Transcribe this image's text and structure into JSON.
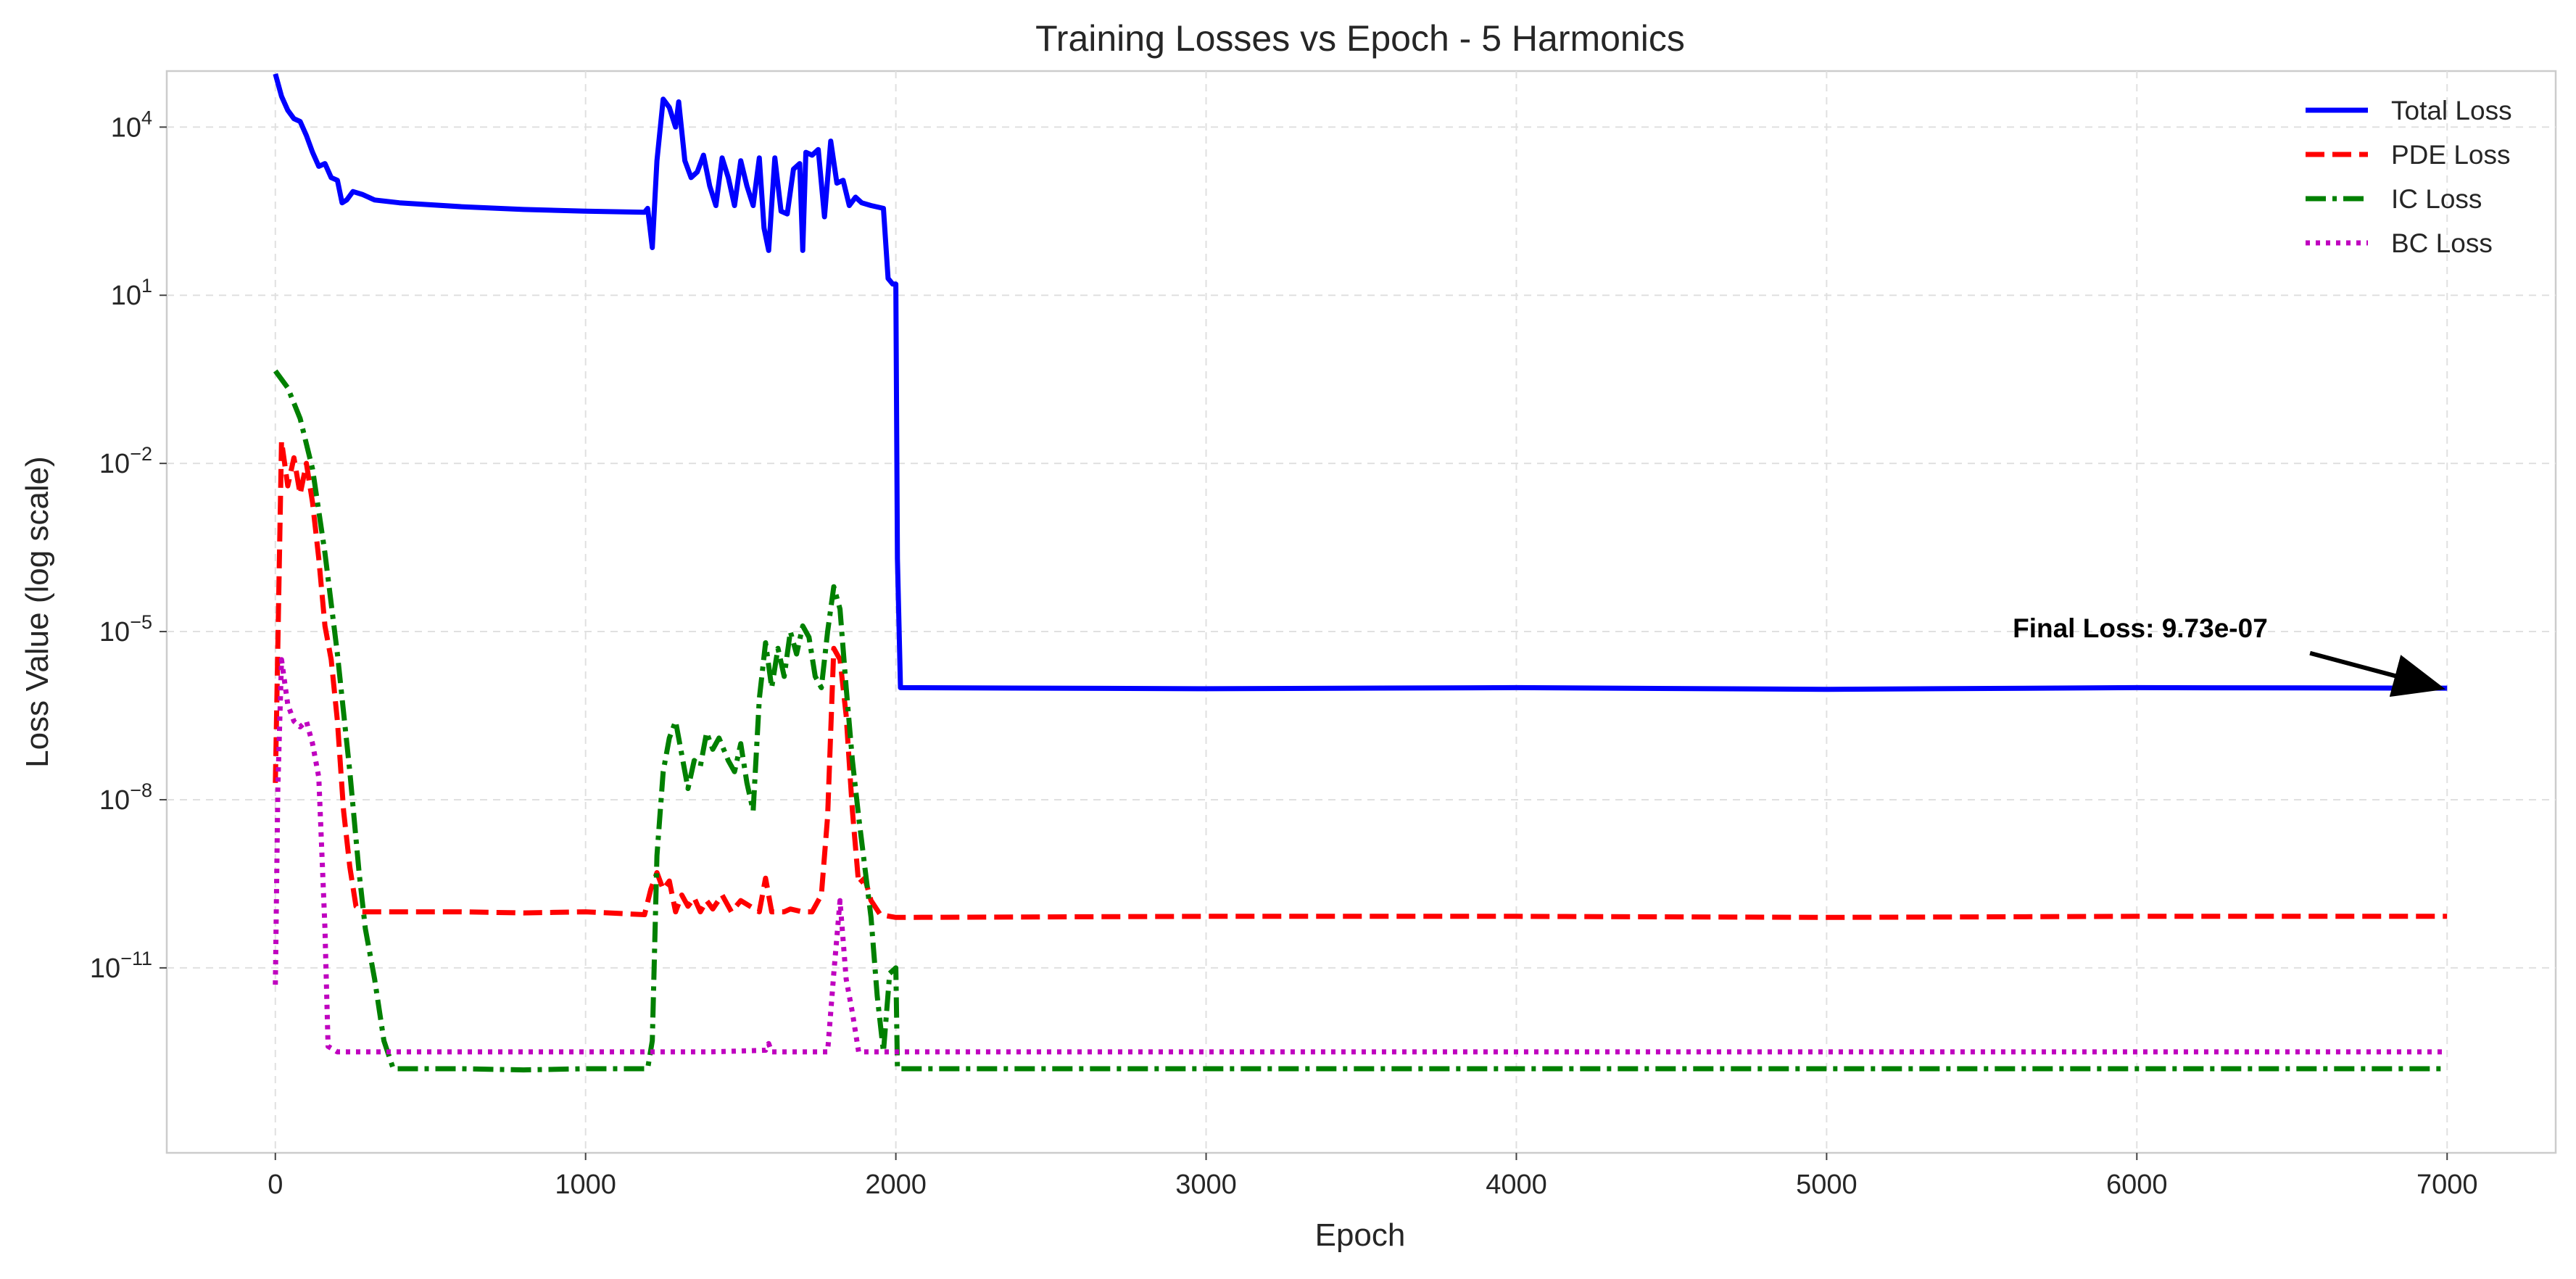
{
  "chart_data": {
    "type": "line",
    "title": "Training Losses vs Epoch - 5 Harmonics",
    "xlabel": "Epoch",
    "ylabel": "Loss Value (log scale)",
    "xlim": [
      -350,
      7350
    ],
    "ylim_log10": [
      -14.3,
      5.0
    ],
    "yscale": "log",
    "x_ticks": [
      0,
      1000,
      2000,
      3000,
      4000,
      5000,
      6000,
      7000
    ],
    "x_tick_labels": [
      "0",
      "1000",
      "2000",
      "3000",
      "4000",
      "5000",
      "6000",
      "7000"
    ],
    "y_ticks_log10": [
      4,
      1,
      -2,
      -5,
      -8,
      -11
    ],
    "y_tick_labels": [
      {
        "base": "10",
        "exp": "4"
      },
      {
        "base": "10",
        "exp": "1"
      },
      {
        "base": "10",
        "exp": "−2"
      },
      {
        "base": "10",
        "exp": "−5"
      },
      {
        "base": "10",
        "exp": "−8"
      },
      {
        "base": "10",
        "exp": "−11"
      }
    ],
    "grid": true,
    "legend_position": "top-right",
    "series": [
      {
        "name": "Total Loss",
        "color": "#0000ff",
        "dash": "solid",
        "points_log10": [
          [
            0,
            4.95
          ],
          [
            20,
            4.55
          ],
          [
            40,
            4.3
          ],
          [
            60,
            4.15
          ],
          [
            80,
            4.1
          ],
          [
            100,
            3.85
          ],
          [
            120,
            3.55
          ],
          [
            140,
            3.3
          ],
          [
            160,
            3.35
          ],
          [
            180,
            3.1
          ],
          [
            200,
            3.05
          ],
          [
            215,
            2.65
          ],
          [
            230,
            2.7
          ],
          [
            250,
            2.85
          ],
          [
            280,
            2.8
          ],
          [
            320,
            2.7
          ],
          [
            400,
            2.65
          ],
          [
            600,
            2.58
          ],
          [
            800,
            2.53
          ],
          [
            1000,
            2.5
          ],
          [
            1190,
            2.48
          ],
          [
            1200,
            2.55
          ],
          [
            1215,
            1.85
          ],
          [
            1230,
            3.4
          ],
          [
            1250,
            4.5
          ],
          [
            1270,
            4.35
          ],
          [
            1290,
            4.0
          ],
          [
            1300,
            4.45
          ],
          [
            1320,
            3.4
          ],
          [
            1340,
            3.1
          ],
          [
            1360,
            3.2
          ],
          [
            1380,
            3.5
          ],
          [
            1400,
            2.95
          ],
          [
            1420,
            2.6
          ],
          [
            1440,
            3.45
          ],
          [
            1460,
            3.1
          ],
          [
            1480,
            2.6
          ],
          [
            1500,
            3.4
          ],
          [
            1520,
            2.95
          ],
          [
            1540,
            2.6
          ],
          [
            1560,
            3.45
          ],
          [
            1575,
            2.2
          ],
          [
            1590,
            1.8
          ],
          [
            1610,
            3.45
          ],
          [
            1630,
            2.5
          ],
          [
            1650,
            2.45
          ],
          [
            1670,
            3.25
          ],
          [
            1690,
            3.35
          ],
          [
            1700,
            1.8
          ],
          [
            1710,
            3.55
          ],
          [
            1730,
            3.5
          ],
          [
            1750,
            3.6
          ],
          [
            1770,
            2.4
          ],
          [
            1790,
            3.75
          ],
          [
            1810,
            3.0
          ],
          [
            1830,
            3.05
          ],
          [
            1850,
            2.6
          ],
          [
            1870,
            2.75
          ],
          [
            1890,
            2.65
          ],
          [
            1920,
            2.6
          ],
          [
            1960,
            2.55
          ],
          [
            1975,
            1.3
          ],
          [
            1990,
            1.2
          ],
          [
            2000,
            1.2
          ],
          [
            2005,
            -3.7
          ],
          [
            2015,
            -6.0
          ],
          [
            3000,
            -6.02
          ],
          [
            4000,
            -6.0
          ],
          [
            5000,
            -6.03
          ],
          [
            6000,
            -6.0
          ],
          [
            7000,
            -6.01
          ]
        ]
      },
      {
        "name": "PDE Loss",
        "color": "#ff0000",
        "dash": "dashed",
        "points_log10": [
          [
            0,
            -7.7
          ],
          [
            20,
            -1.6
          ],
          [
            40,
            -2.4
          ],
          [
            60,
            -1.9
          ],
          [
            80,
            -2.55
          ],
          [
            100,
            -2.0
          ],
          [
            120,
            -2.7
          ],
          [
            140,
            -3.7
          ],
          [
            160,
            -4.9
          ],
          [
            180,
            -5.5
          ],
          [
            200,
            -6.6
          ],
          [
            220,
            -8.2
          ],
          [
            240,
            -9.2
          ],
          [
            260,
            -9.9
          ],
          [
            280,
            -10.0
          ],
          [
            400,
            -10.0
          ],
          [
            600,
            -10.0
          ],
          [
            800,
            -10.02
          ],
          [
            1000,
            -10.0
          ],
          [
            1190,
            -10.05
          ],
          [
            1210,
            -9.6
          ],
          [
            1230,
            -9.3
          ],
          [
            1250,
            -9.6
          ],
          [
            1270,
            -9.45
          ],
          [
            1290,
            -10.0
          ],
          [
            1310,
            -9.7
          ],
          [
            1330,
            -9.9
          ],
          [
            1350,
            -9.75
          ],
          [
            1370,
            -10.0
          ],
          [
            1390,
            -9.8
          ],
          [
            1410,
            -9.95
          ],
          [
            1440,
            -9.7
          ],
          [
            1470,
            -10.0
          ],
          [
            1500,
            -9.8
          ],
          [
            1530,
            -9.9
          ],
          [
            1560,
            -10.0
          ],
          [
            1580,
            -9.4
          ],
          [
            1600,
            -10.0
          ],
          [
            1640,
            -10.0
          ],
          [
            1660,
            -9.95
          ],
          [
            1700,
            -10.0
          ],
          [
            1730,
            -10.0
          ],
          [
            1760,
            -9.7
          ],
          [
            1780,
            -8.3
          ],
          [
            1800,
            -5.3
          ],
          [
            1820,
            -5.5
          ],
          [
            1840,
            -6.5
          ],
          [
            1860,
            -8.2
          ],
          [
            1880,
            -9.5
          ],
          [
            1900,
            -9.4
          ],
          [
            1920,
            -9.8
          ],
          [
            1950,
            -10.05
          ],
          [
            2000,
            -10.1
          ],
          [
            3000,
            -10.08
          ],
          [
            4000,
            -10.08
          ],
          [
            5000,
            -10.1
          ],
          [
            6000,
            -10.08
          ],
          [
            7000,
            -10.08
          ]
        ]
      },
      {
        "name": "IC Loss",
        "color": "#008000",
        "dash": "dashdot",
        "points_log10": [
          [
            0,
            -0.35
          ],
          [
            40,
            -0.65
          ],
          [
            80,
            -1.2
          ],
          [
            120,
            -2.1
          ],
          [
            160,
            -3.6
          ],
          [
            200,
            -5.4
          ],
          [
            240,
            -7.5
          ],
          [
            270,
            -9.3
          ],
          [
            290,
            -10.3
          ],
          [
            320,
            -11.2
          ],
          [
            350,
            -12.3
          ],
          [
            380,
            -12.8
          ],
          [
            600,
            -12.8
          ],
          [
            800,
            -12.82
          ],
          [
            1000,
            -12.8
          ],
          [
            1200,
            -12.8
          ],
          [
            1215,
            -12.3
          ],
          [
            1230,
            -9.0
          ],
          [
            1250,
            -7.5
          ],
          [
            1270,
            -6.9
          ],
          [
            1290,
            -6.6
          ],
          [
            1310,
            -7.2
          ],
          [
            1330,
            -7.8
          ],
          [
            1350,
            -7.3
          ],
          [
            1370,
            -7.4
          ],
          [
            1390,
            -6.8
          ],
          [
            1410,
            -7.1
          ],
          [
            1430,
            -6.9
          ],
          [
            1460,
            -7.3
          ],
          [
            1480,
            -7.5
          ],
          [
            1500,
            -7.0
          ],
          [
            1520,
            -7.7
          ],
          [
            1540,
            -8.2
          ],
          [
            1560,
            -6.2
          ],
          [
            1580,
            -5.2
          ],
          [
            1600,
            -6.0
          ],
          [
            1620,
            -5.3
          ],
          [
            1640,
            -5.8
          ],
          [
            1660,
            -5.0
          ],
          [
            1680,
            -5.4
          ],
          [
            1700,
            -4.9
          ],
          [
            1720,
            -5.1
          ],
          [
            1740,
            -5.8
          ],
          [
            1760,
            -6.0
          ],
          [
            1780,
            -5.0
          ],
          [
            1800,
            -4.2
          ],
          [
            1820,
            -4.6
          ],
          [
            1840,
            -6.0
          ],
          [
            1860,
            -7.3
          ],
          [
            1880,
            -8.3
          ],
          [
            1900,
            -9.2
          ],
          [
            1920,
            -10.1
          ],
          [
            1940,
            -11.5
          ],
          [
            1960,
            -12.5
          ],
          [
            1980,
            -11.1
          ],
          [
            2000,
            -11.0
          ],
          [
            2005,
            -12.8
          ],
          [
            3000,
            -12.8
          ],
          [
            4000,
            -12.8
          ],
          [
            5000,
            -12.8
          ],
          [
            6000,
            -12.8
          ],
          [
            7000,
            -12.8
          ]
        ]
      },
      {
        "name": "BC Loss",
        "color": "#bf00bf",
        "dash": "dotted",
        "points_log10": [
          [
            0,
            -11.3
          ],
          [
            8,
            -7.8
          ],
          [
            20,
            -5.5
          ],
          [
            40,
            -6.3
          ],
          [
            60,
            -6.6
          ],
          [
            80,
            -6.7
          ],
          [
            100,
            -6.6
          ],
          [
            120,
            -7.0
          ],
          [
            140,
            -7.6
          ],
          [
            160,
            -10.3
          ],
          [
            170,
            -12.4
          ],
          [
            200,
            -12.5
          ],
          [
            400,
            -12.5
          ],
          [
            600,
            -12.5
          ],
          [
            800,
            -12.5
          ],
          [
            1000,
            -12.5
          ],
          [
            1200,
            -12.5
          ],
          [
            1400,
            -12.5
          ],
          [
            1580,
            -12.47
          ],
          [
            1590,
            -12.35
          ],
          [
            1600,
            -12.5
          ],
          [
            1780,
            -12.5
          ],
          [
            1800,
            -11.1
          ],
          [
            1820,
            -9.8
          ],
          [
            1840,
            -11.2
          ],
          [
            1860,
            -11.8
          ],
          [
            1880,
            -12.5
          ],
          [
            2000,
            -12.5
          ],
          [
            3000,
            -12.5
          ],
          [
            4000,
            -12.5
          ],
          [
            5000,
            -12.5
          ],
          [
            6000,
            -12.5
          ],
          [
            7000,
            -12.5
          ]
        ]
      }
    ],
    "annotations": [
      {
        "text": "Final Loss: 9.73e-07",
        "arrow_to_x": 7000,
        "arrow_to_y_log10": -6.01,
        "text_x": 5600,
        "text_y_log10": -5.1
      }
    ]
  }
}
